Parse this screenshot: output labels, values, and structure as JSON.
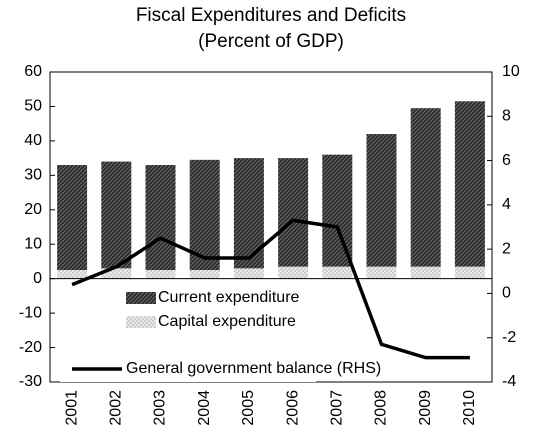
{
  "chart_data": {
    "type": "bar",
    "title": "Fiscal Expenditures and Deficits",
    "subtitle": "(Percent of GDP)",
    "categories": [
      "2001",
      "2002",
      "2003",
      "2004",
      "2005",
      "2006",
      "2007",
      "2008",
      "2009",
      "2010"
    ],
    "series": [
      {
        "name": "Current expenditure",
        "type": "bar",
        "color": "#2b2b2b",
        "pattern": "hatch",
        "values": [
          30.5,
          31,
          30.5,
          32,
          32,
          31.5,
          32.5,
          38.5,
          46,
          48
        ]
      },
      {
        "name": "Capital expenditure",
        "type": "bar",
        "color": "#b0b0b0",
        "pattern": "dots",
        "values": [
          2.5,
          3,
          2.5,
          2.5,
          3,
          3.5,
          3.5,
          3.5,
          3.5,
          3.5
        ]
      },
      {
        "name": "General government balance (RHS)",
        "type": "line",
        "axis": "y2",
        "color": "#000000",
        "values": [
          0.4,
          1.2,
          2.5,
          1.6,
          1.6,
          3.3,
          3.0,
          -2.3,
          -2.9,
          -2.9
        ]
      }
    ],
    "stacked": true,
    "ylim": [
      -30,
      60
    ],
    "yticks": [
      -30,
      -20,
      -10,
      0,
      10,
      20,
      30,
      40,
      50,
      60
    ],
    "y2lim": [
      -4,
      10
    ],
    "y2ticks": [
      -4,
      -2,
      0,
      2,
      4,
      6,
      8,
      10
    ],
    "legend": "bottom-left",
    "grid": false
  }
}
